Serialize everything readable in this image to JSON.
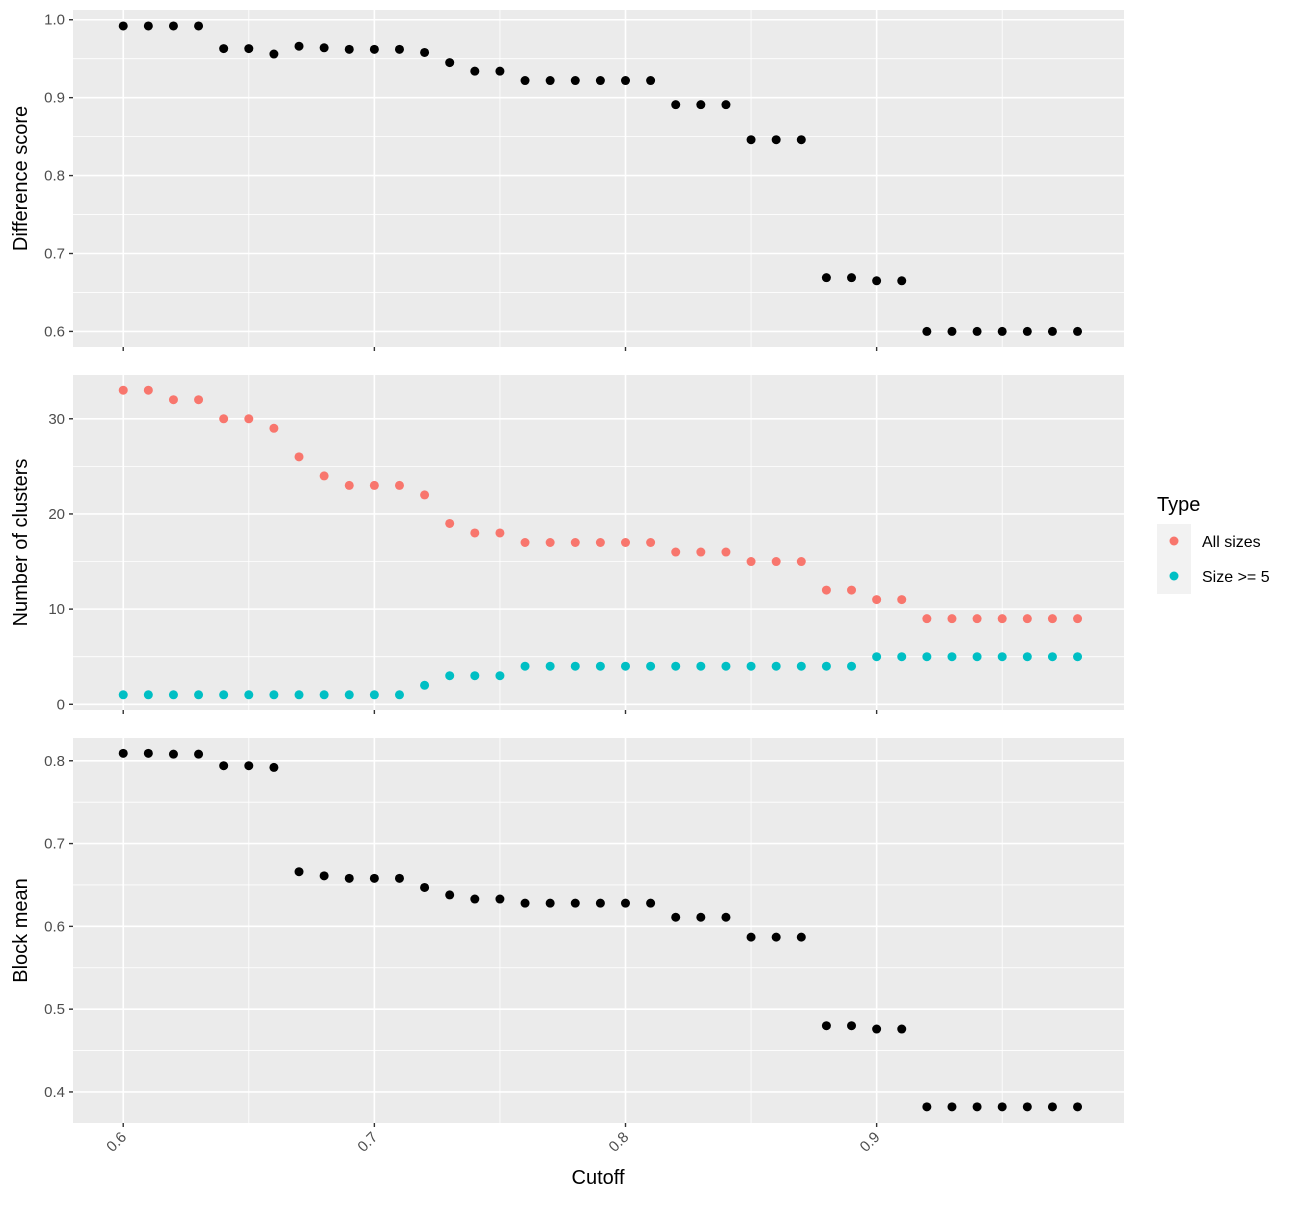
{
  "chart_data": {
    "type": "scatter",
    "xlabel": "Cutoff",
    "x_ticks": [
      "0.6",
      "0.7",
      "0.8",
      "0.9"
    ],
    "x_tick_values": [
      0.6,
      0.7,
      0.8,
      0.9
    ],
    "xlim": [
      0.58,
      0.9985
    ],
    "x": [
      0.6,
      0.61,
      0.62,
      0.63,
      0.64,
      0.65,
      0.66,
      0.67,
      0.68,
      0.69,
      0.7,
      0.71,
      0.72,
      0.73,
      0.74,
      0.75,
      0.76,
      0.77,
      0.78,
      0.79,
      0.8,
      0.81,
      0.82,
      0.83,
      0.84,
      0.85,
      0.86,
      0.87,
      0.88,
      0.89,
      0.9,
      0.91,
      0.92,
      0.93,
      0.94,
      0.95,
      0.96,
      0.97,
      0.98
    ],
    "grid": true,
    "legend": {
      "title": "Type",
      "position": "right",
      "entries": [
        {
          "label": "All sizes",
          "color": "#F8766D"
        },
        {
          "label": "Size >= 5",
          "color": "#00BFC4"
        }
      ]
    },
    "panels": [
      {
        "ylabel": "Difference score",
        "ylim": [
          0.58,
          1.0125
        ],
        "y_ticks": [
          "0.6",
          "0.7",
          "0.8",
          "0.9",
          "1.0"
        ],
        "y_tick_values": [
          0.6,
          0.7,
          0.8,
          0.9,
          1.0
        ],
        "series": [
          {
            "color": "#000000",
            "values": [
              0.992,
              0.992,
              0.992,
              0.992,
              0.963,
              0.963,
              0.956,
              0.966,
              0.964,
              0.962,
              0.962,
              0.962,
              0.958,
              0.945,
              0.934,
              0.934,
              0.922,
              0.922,
              0.922,
              0.922,
              0.922,
              0.922,
              0.891,
              0.891,
              0.891,
              0.846,
              0.846,
              0.846,
              0.669,
              0.669,
              0.665,
              0.665,
              0.6,
              0.6,
              0.6,
              0.6,
              0.6,
              0.6,
              0.6
            ]
          }
        ]
      },
      {
        "ylabel": "Number of clusters",
        "ylim": [
          -0.6,
          34.6
        ],
        "y_ticks": [
          "0",
          "10",
          "20",
          "30"
        ],
        "y_tick_values": [
          0,
          10,
          20,
          30
        ],
        "series": [
          {
            "name": "All sizes",
            "color": "#F8766D",
            "values": [
              33,
              33,
              32,
              32,
              30,
              30,
              29,
              26,
              24,
              23,
              23,
              23,
              22,
              19,
              18,
              18,
              17,
              17,
              17,
              17,
              17,
              17,
              16,
              16,
              16,
              15,
              15,
              15,
              12,
              12,
              11,
              11,
              9,
              9,
              9,
              9,
              9,
              9,
              9
            ]
          },
          {
            "name": "Size >= 5",
            "color": "#00BFC4",
            "values": [
              1,
              1,
              1,
              1,
              1,
              1,
              1,
              1,
              1,
              1,
              1,
              1,
              2,
              3,
              3,
              3,
              4,
              4,
              4,
              4,
              4,
              4,
              4,
              4,
              4,
              4,
              4,
              4,
              4,
              4,
              5,
              5,
              5,
              5,
              5,
              5,
              5,
              5,
              5
            ]
          }
        ]
      },
      {
        "ylabel": "Block mean",
        "ylim": [
          0.3625,
          0.8275
        ],
        "y_ticks": [
          "0.4",
          "0.5",
          "0.6",
          "0.7",
          "0.8"
        ],
        "y_tick_values": [
          0.4,
          0.5,
          0.6,
          0.7,
          0.8
        ],
        "series": [
          {
            "color": "#000000",
            "values": [
              0.809,
              0.809,
              0.808,
              0.808,
              0.794,
              0.794,
              0.792,
              0.666,
              0.661,
              0.658,
              0.658,
              0.658,
              0.647,
              0.638,
              0.633,
              0.633,
              0.628,
              0.628,
              0.628,
              0.628,
              0.628,
              0.628,
              0.611,
              0.611,
              0.611,
              0.587,
              0.587,
              0.587,
              0.48,
              0.48,
              0.476,
              0.476,
              0.382,
              0.382,
              0.382,
              0.382,
              0.382,
              0.382,
              0.382
            ]
          }
        ]
      }
    ]
  }
}
